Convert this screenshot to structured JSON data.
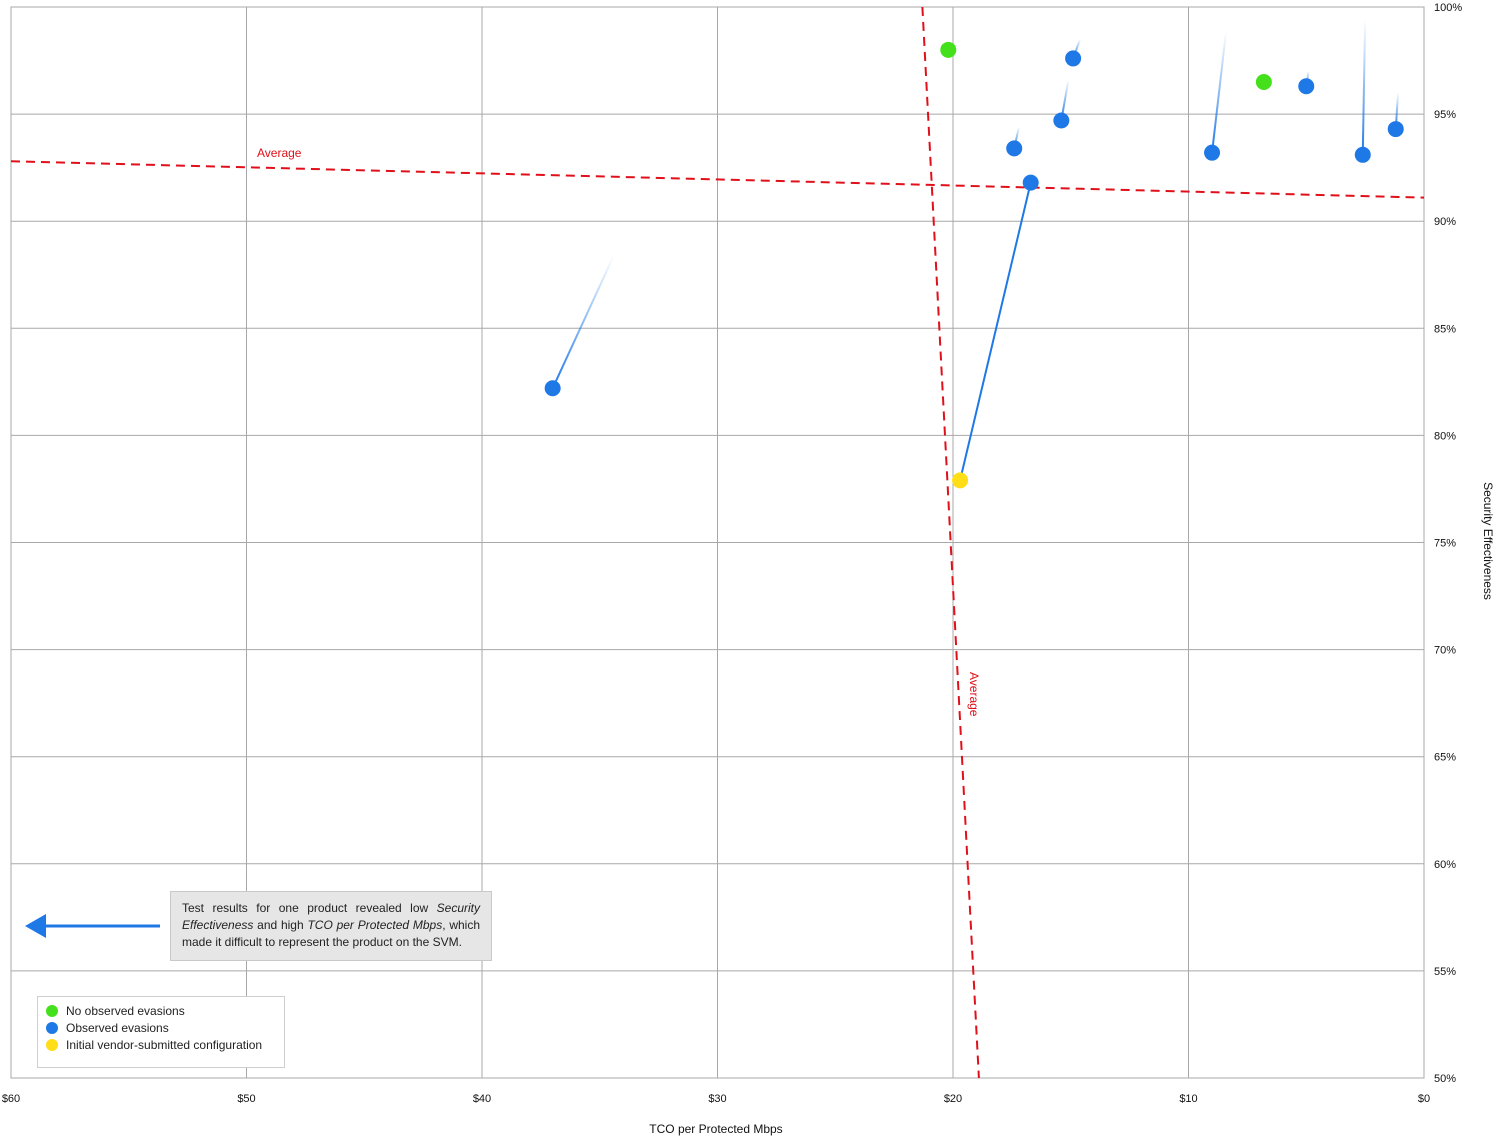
{
  "chart_data": {
    "type": "scatter",
    "xlabel": "TCO per Protected Mbps",
    "ylabel": "Security Effectiveness",
    "x_axis": {
      "min": 0,
      "max": 60,
      "reversed": true,
      "ticks": [
        60,
        50,
        40,
        30,
        20,
        10,
        0
      ],
      "tick_labels": [
        "$60",
        "$50",
        "$40",
        "$30",
        "$20",
        "$10",
        "$0"
      ],
      "position": "bottom"
    },
    "y_axis": {
      "min": 50,
      "max": 100,
      "ticks": [
        100,
        95,
        90,
        85,
        80,
        75,
        70,
        65,
        60,
        55,
        50
      ],
      "tick_labels": [
        "100%",
        "95%",
        "90%",
        "85%",
        "80%",
        "75%",
        "70%",
        "65%",
        "60%",
        "55%",
        "50%"
      ],
      "position": "right"
    },
    "grid": true,
    "legend_position": "bottom-left",
    "colors": {
      "none": "#44e01b",
      "observed": "#1e78e6",
      "initial": "#ffde17",
      "average": "#e0101a",
      "trail": "#1e78e6"
    },
    "series": [
      {
        "name": "No observed evasions",
        "color": "#44e01b",
        "points": [
          {
            "x": 20.2,
            "y": 98.0
          },
          {
            "x": 6.8,
            "y": 96.5
          }
        ]
      },
      {
        "name": "Observed evasions",
        "color": "#1e78e6",
        "points": [
          {
            "x": 37.0,
            "y": 82.2,
            "trail_to": {
              "x": 34.4,
              "y": 88.4
            }
          },
          {
            "x": 16.7,
            "y": 91.8
          },
          {
            "x": 17.4,
            "y": 93.4,
            "trail_to": {
              "x": 17.2,
              "y": 94.4
            }
          },
          {
            "x": 15.4,
            "y": 94.7,
            "trail_to": {
              "x": 15.1,
              "y": 96.6
            }
          },
          {
            "x": 14.9,
            "y": 97.6,
            "trail_to": {
              "x": 14.6,
              "y": 98.5
            }
          },
          {
            "x": 9.0,
            "y": 93.2,
            "trail_to": {
              "x": 8.4,
              "y": 98.9
            }
          },
          {
            "x": 5.0,
            "y": 96.3,
            "trail_to": {
              "x": 4.9,
              "y": 97.0
            }
          },
          {
            "x": 2.6,
            "y": 93.1,
            "trail_to": {
              "x": 2.5,
              "y": 99.4
            }
          },
          {
            "x": 1.2,
            "y": 94.3,
            "trail_to": {
              "x": 1.1,
              "y": 96.0
            }
          }
        ]
      },
      {
        "name": "Initial vendor-submitted configuration",
        "color": "#ffde17",
        "points": [
          {
            "x": 19.7,
            "y": 77.9,
            "trail_to": {
              "x": 16.7,
              "y": 91.8
            },
            "trail_style": "solid"
          }
        ]
      }
    ],
    "average_lines": [
      {
        "label": "Average",
        "orientation": "horizontal",
        "from": {
          "x": 60,
          "y": 92.8
        },
        "to": {
          "x": 0,
          "y": 91.1
        }
      },
      {
        "label": "Average",
        "orientation": "vertical",
        "from": {
          "x": 21.3,
          "y": 100
        },
        "to": {
          "x": 18.9,
          "y": 50
        }
      }
    ]
  },
  "average_labels": {
    "horizontal": "Average",
    "vertical": "Average"
  },
  "callout": {
    "text_1": "Test results for one product revealed low ",
    "italic_1": "Security Effectiveness",
    "text_2": " and high ",
    "italic_2": "TCO per Protected Mbps",
    "text_3": ", which made it difficult to represent the product on the SVM."
  },
  "legend": {
    "items": [
      {
        "label": "No observed evasions",
        "color": "#44e01b"
      },
      {
        "label": "Observed evasions",
        "color": "#1e78e6"
      },
      {
        "label": "Initial vendor-submitted configuration",
        "color": "#ffde17"
      }
    ]
  }
}
